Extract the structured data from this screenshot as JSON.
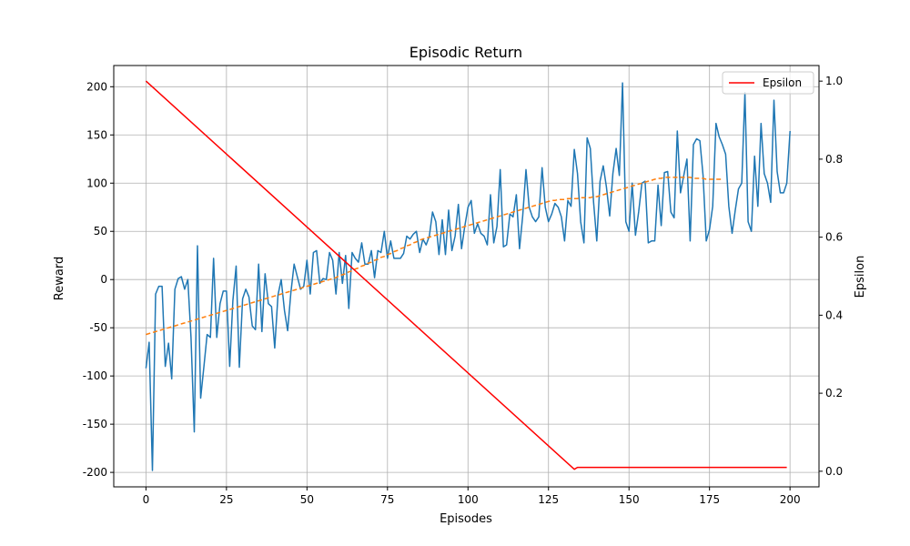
{
  "chart_data": {
    "type": "line",
    "title": "Episodic Return",
    "xlabel": "Episodes",
    "ylabel": "Reward",
    "y2label": "Epsilon",
    "xlim": [
      -10,
      209
    ],
    "ylim": [
      -215,
      222
    ],
    "y2lim": [
      -0.04,
      1.04
    ],
    "xticks": [
      0,
      25,
      50,
      75,
      100,
      125,
      150,
      175,
      200
    ],
    "yticks": [
      -200,
      -150,
      -100,
      -50,
      0,
      50,
      100,
      150,
      200
    ],
    "y2ticks": [
      0.0,
      0.2,
      0.4,
      0.6,
      0.8,
      1.0
    ],
    "grid": true,
    "legend": {
      "placement": "top-right",
      "entries": [
        "Epsilon"
      ]
    },
    "colors": {
      "reward": "#1f77b4",
      "trend": "#ff7f0e",
      "epsilon": "#ff0000"
    },
    "series": [
      {
        "axis": "left",
        "style": "solid",
        "x_start": 0,
        "values": [
          -92,
          -65,
          -198,
          -15,
          -7,
          -7,
          -90,
          -66,
          -103,
          -10,
          1,
          3,
          -10,
          0,
          -60,
          -158,
          35,
          -123,
          -90,
          -57,
          -60,
          22,
          -60,
          -25,
          -12,
          -12,
          -90,
          -22,
          14,
          -91,
          -20,
          -10,
          -18,
          -48,
          -52,
          16,
          -54,
          6,
          -25,
          -28,
          -71,
          -16,
          0,
          -32,
          -53,
          -14,
          16,
          3,
          -10,
          -7,
          20,
          -15,
          28,
          30,
          -4,
          1,
          0,
          28,
          20,
          -15,
          28,
          -4,
          25,
          -30,
          28,
          22,
          18,
          38,
          16,
          16,
          30,
          2,
          30,
          28,
          50,
          22,
          40,
          22,
          22,
          22,
          27,
          45,
          42,
          47,
          50,
          28,
          42,
          36,
          45,
          70,
          60,
          26,
          62,
          26,
          72,
          30,
          45,
          78,
          32,
          55,
          75,
          82,
          48,
          58,
          48,
          45,
          36,
          88,
          38,
          55,
          114,
          34,
          36,
          68,
          65,
          88,
          32,
          66,
          114,
          75,
          65,
          60,
          65,
          116,
          75,
          60,
          68,
          79,
          75,
          65,
          40,
          82,
          76,
          135,
          110,
          60,
          38,
          147,
          136,
          80,
          40,
          102,
          118,
          96,
          66,
          110,
          136,
          108,
          204,
          60,
          50,
          100,
          46,
          70,
          100,
          102,
          38,
          40,
          40,
          98,
          56,
          111,
          112,
          70,
          64,
          154,
          90,
          108,
          125,
          40,
          140,
          146,
          144,
          108,
          40,
          52,
          76,
          162,
          148,
          140,
          130,
          76,
          48,
          72,
          94,
          100,
          194,
          60,
          50,
          128,
          76,
          162,
          110,
          100,
          80,
          186,
          112,
          90,
          90,
          100,
          154
        ]
      },
      {
        "axis": "left",
        "style": "dashed",
        "x_start": 0,
        "values": [
          -57,
          -56,
          -55,
          -54,
          -53,
          -52,
          -51,
          -50,
          -49,
          -48,
          -47,
          -46,
          -45,
          -44,
          -43,
          -42,
          -41,
          -40,
          -39,
          -38,
          -37,
          -36,
          -35,
          -34,
          -33,
          -32,
          -31,
          -30,
          -29,
          -28,
          -27,
          -26,
          -25,
          -24,
          -23,
          -22,
          -21,
          -20,
          -19,
          -18,
          -17,
          -16,
          -15,
          -14,
          -13,
          -12,
          -11,
          -10,
          -9,
          -8,
          -7,
          -6,
          -5,
          -4,
          -3,
          -2,
          -1,
          0,
          1,
          2,
          4,
          5,
          6,
          8,
          9,
          11,
          12,
          14,
          15,
          17,
          18,
          20,
          21,
          23,
          24,
          26,
          27,
          29,
          30,
          32,
          33,
          35,
          36,
          38,
          39,
          41,
          42,
          43,
          44,
          45,
          46,
          47,
          48,
          49,
          50,
          51,
          52,
          53,
          54,
          55,
          56,
          57,
          58,
          59,
          60,
          61,
          62,
          63,
          64,
          65,
          66,
          67,
          68,
          69,
          70,
          71,
          72,
          73,
          74,
          75,
          76,
          77,
          78,
          79,
          80,
          81,
          82,
          82,
          83,
          83,
          83,
          84,
          84,
          84,
          84,
          85,
          85,
          85,
          85,
          86,
          86,
          87,
          88,
          89,
          90,
          91,
          92,
          93,
          94,
          95,
          96,
          97,
          98,
          99,
          100,
          101,
          102,
          103,
          104,
          105,
          105,
          106,
          106,
          106,
          106,
          106,
          106,
          106,
          106,
          106,
          105,
          105,
          105,
          105,
          104,
          104,
          104,
          104,
          104,
          104
        ]
      },
      {
        "name": "Epsilon",
        "axis": "right",
        "style": "solid",
        "x": [
          0,
          133,
          134,
          199
        ],
        "values": [
          1.0,
          0.005,
          0.01,
          0.01
        ]
      }
    ]
  }
}
